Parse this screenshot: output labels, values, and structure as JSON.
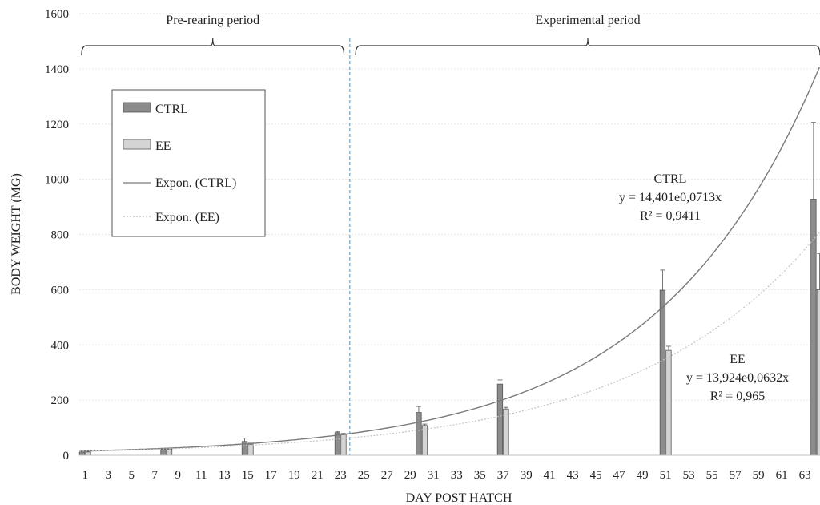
{
  "chart_data": {
    "type": "bar",
    "xlabel": "DAY POST HATCH",
    "ylabel": "BODY WEIGHT (MG)",
    "ylim": [
      0,
      1600
    ],
    "yticks": [
      0,
      200,
      400,
      600,
      800,
      1000,
      1200,
      1400,
      1600
    ],
    "xticks": [
      1,
      3,
      5,
      7,
      9,
      11,
      13,
      15,
      17,
      19,
      21,
      23,
      25,
      27,
      29,
      31,
      33,
      35,
      37,
      39,
      41,
      43,
      45,
      47,
      49,
      51,
      53,
      55,
      57,
      59,
      61,
      63
    ],
    "xrange": [
      0.5,
      64.3
    ],
    "grid": true,
    "legend_position": "upper-left",
    "series": [
      {
        "name": "CTRL",
        "color": "#8c8c8c",
        "days": [
          1,
          8,
          15,
          23,
          30,
          37,
          51,
          64
        ],
        "values": [
          12,
          22,
          50,
          82,
          155,
          258,
          598,
          928
        ],
        "errors": [
          2,
          3,
          12,
          3,
          22,
          15,
          73,
          278
        ]
      },
      {
        "name": "EE",
        "color": "#d4d4d4",
        "days": [
          1,
          8,
          15,
          23,
          30,
          37,
          51,
          64
        ],
        "values": [
          12,
          22,
          40,
          75,
          108,
          168,
          380,
          600
        ],
        "errors": [
          2,
          3,
          4,
          4,
          5,
          6,
          15,
          130
        ]
      }
    ],
    "trendlines": [
      {
        "name": "Expon. (CTRL)",
        "a": 14.401,
        "b": 0.0713,
        "color": "#7a7a7a",
        "style": "solid",
        "label_title": "CTRL",
        "equation": "y = 14,401e0,0713x",
        "r2": "R² = 0,9411"
      },
      {
        "name": "Expon. (EE)",
        "a": 13.924,
        "b": 0.0632,
        "color": "#c4c4c4",
        "style": "dotted",
        "label_title": "EE",
        "equation": "y = 13,924e0,0632x",
        "r2": "R² = 0,965"
      }
    ],
    "divider_day": 23.8,
    "periods": [
      {
        "label": "Pre-rearing period",
        "from": 0.7,
        "to": 23.3
      },
      {
        "label": "Experimental period",
        "from": 24.3,
        "to": 64.3
      }
    ]
  },
  "legend": {
    "items": [
      {
        "label": "CTRL",
        "kind": "bar",
        "color": "#8c8c8c"
      },
      {
        "label": "EE",
        "kind": "bar",
        "color": "#d4d4d4"
      },
      {
        "label": "Expon. (CTRL)",
        "kind": "line",
        "color": "#7a7a7a"
      },
      {
        "label": "Expon. (EE)",
        "kind": "dotted",
        "color": "#c4c4c4"
      }
    ]
  }
}
